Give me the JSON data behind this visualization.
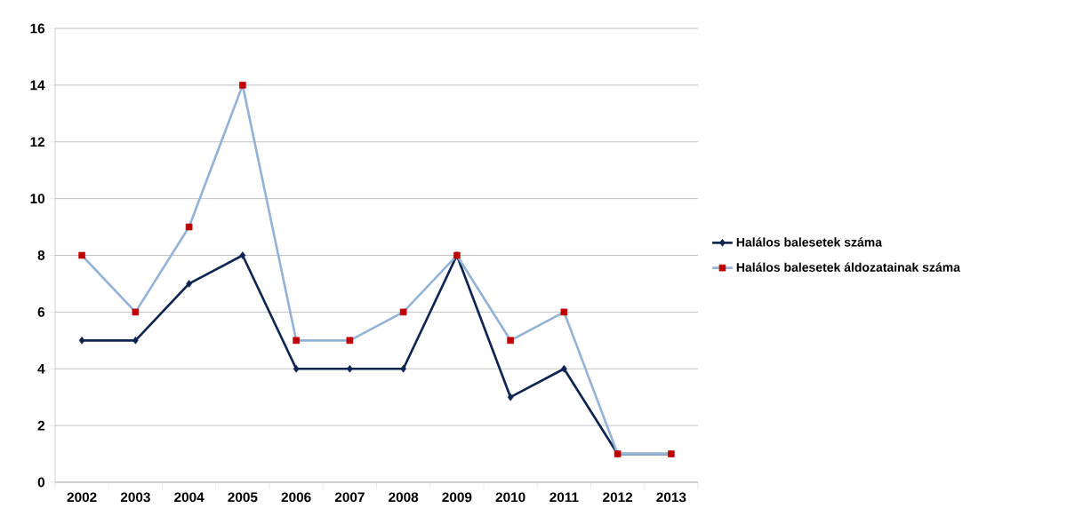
{
  "chart_data": {
    "type": "line",
    "categories": [
      "2002",
      "2003",
      "2004",
      "2005",
      "2006",
      "2007",
      "2008",
      "2009",
      "2010",
      "2011",
      "2012",
      "2013"
    ],
    "series": [
      {
        "name": "Halálos balesetek száma",
        "color": "#0f2551",
        "marker": "diamond",
        "values": [
          5,
          5,
          7,
          8,
          4,
          4,
          4,
          8,
          3,
          4,
          1,
          1
        ]
      },
      {
        "name": "Halálos balesetek áldozatainak száma",
        "color": "#95b3d7",
        "marker": "square",
        "colors": [
          "#c00000",
          "#c00000",
          "#c00000",
          "#c00000",
          "#c00000",
          "#c00000",
          "#c00000",
          "#c00000",
          "#c00000",
          "#c00000",
          "#c00000",
          "#c00000"
        ],
        "values": [
          8,
          6,
          9,
          14,
          5,
          5,
          6,
          8,
          5,
          6,
          1,
          1
        ]
      }
    ],
    "ylim": [
      0,
      16
    ],
    "yticks": [
      0,
      2,
      4,
      6,
      8,
      10,
      12,
      14,
      16
    ],
    "grid": "y",
    "legend": "right",
    "line_style": "solid"
  }
}
